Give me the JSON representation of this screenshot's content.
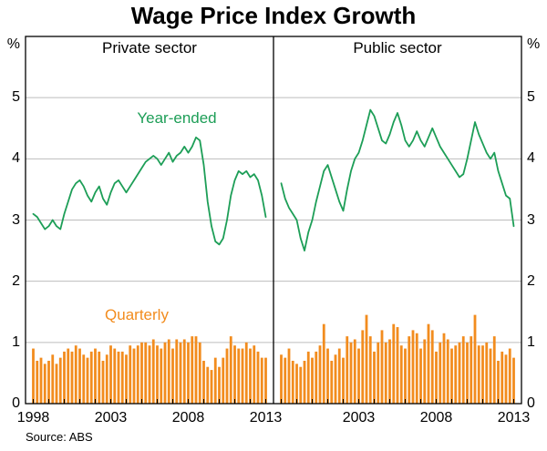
{
  "title": "Wage Price Index Growth",
  "source": "Source: ABS",
  "chart_data": {
    "type": "bar+line",
    "title": "Wage Price Index Growth",
    "ylabel": "%",
    "unit": "%",
    "ylim": [
      0,
      6
    ],
    "x_range": [
      1998,
      2013
    ],
    "x_start": 1998.0,
    "x_step": 0.25,
    "grid": "horizontal",
    "yticks": [
      "0",
      "1",
      "2",
      "3",
      "4",
      "5"
    ],
    "xticks": {
      "left": [
        "1998",
        "2003",
        "2008",
        "2013"
      ],
      "right": [
        "2003",
        "2008",
        "2013"
      ]
    },
    "colors": {
      "line": "#1d9e57",
      "bar": "#f28c1e",
      "grid": "#bdbdbd",
      "frame": "#000000"
    },
    "panels": [
      {
        "title": "Private sector",
        "line_label": "Year-ended",
        "bar_label": "Quarterly",
        "year_ended": [
          3.1,
          3.05,
          2.95,
          2.85,
          2.9,
          3.0,
          2.9,
          2.85,
          3.1,
          3.3,
          3.5,
          3.6,
          3.65,
          3.55,
          3.4,
          3.3,
          3.45,
          3.55,
          3.35,
          3.25,
          3.45,
          3.6,
          3.65,
          3.55,
          3.45,
          3.55,
          3.65,
          3.75,
          3.85,
          3.95,
          4.0,
          4.05,
          4.0,
          3.9,
          4.0,
          4.1,
          3.95,
          4.05,
          4.1,
          4.2,
          4.1,
          4.2,
          4.35,
          4.3,
          3.9,
          3.3,
          2.9,
          2.65,
          2.6,
          2.7,
          3.0,
          3.4,
          3.65,
          3.8,
          3.75,
          3.8,
          3.7,
          3.75,
          3.65,
          3.4,
          3.05
        ],
        "quarterly": [
          0.9,
          0.7,
          0.75,
          0.65,
          0.7,
          0.8,
          0.65,
          0.75,
          0.85,
          0.9,
          0.85,
          0.95,
          0.9,
          0.8,
          0.75,
          0.85,
          0.9,
          0.85,
          0.7,
          0.8,
          0.95,
          0.9,
          0.85,
          0.85,
          0.8,
          0.95,
          0.9,
          0.95,
          1.0,
          1.0,
          0.95,
          1.05,
          0.95,
          0.9,
          1.0,
          1.05,
          0.9,
          1.05,
          1.0,
          1.05,
          1.0,
          1.1,
          1.1,
          1.0,
          0.7,
          0.6,
          0.55,
          0.75,
          0.6,
          0.75,
          0.9,
          1.1,
          0.95,
          0.9,
          0.9,
          1.0,
          0.9,
          0.95,
          0.85,
          0.75,
          0.75
        ]
      },
      {
        "title": "Public sector",
        "year_ended": [
          3.6,
          3.35,
          3.2,
          3.1,
          3.0,
          2.7,
          2.5,
          2.8,
          3.0,
          3.3,
          3.55,
          3.8,
          3.9,
          3.7,
          3.5,
          3.3,
          3.15,
          3.5,
          3.8,
          4.0,
          4.1,
          4.3,
          4.55,
          4.8,
          4.7,
          4.5,
          4.3,
          4.25,
          4.4,
          4.6,
          4.75,
          4.55,
          4.3,
          4.2,
          4.3,
          4.45,
          4.3,
          4.2,
          4.35,
          4.5,
          4.35,
          4.2,
          4.1,
          4.0,
          3.9,
          3.8,
          3.7,
          3.75,
          4.0,
          4.3,
          4.6,
          4.4,
          4.25,
          4.1,
          4.0,
          4.1,
          3.8,
          3.6,
          3.4,
          3.35,
          2.9
        ],
        "quarterly": [
          0.8,
          0.75,
          0.9,
          0.7,
          0.65,
          0.6,
          0.7,
          0.85,
          0.75,
          0.85,
          0.95,
          1.3,
          0.9,
          0.7,
          0.8,
          0.9,
          0.75,
          1.1,
          1.0,
          1.05,
          0.9,
          1.2,
          1.45,
          1.1,
          0.85,
          1.0,
          1.2,
          1.0,
          1.05,
          1.3,
          1.25,
          0.95,
          0.9,
          1.1,
          1.2,
          1.15,
          0.9,
          1.05,
          1.3,
          1.2,
          0.85,
          1.0,
          1.15,
          1.05,
          0.9,
          0.95,
          1.0,
          1.1,
          1.0,
          1.1,
          1.45,
          0.95,
          0.95,
          1.0,
          0.9,
          1.1,
          0.7,
          0.85,
          0.8,
          0.9,
          0.75
        ]
      }
    ]
  }
}
